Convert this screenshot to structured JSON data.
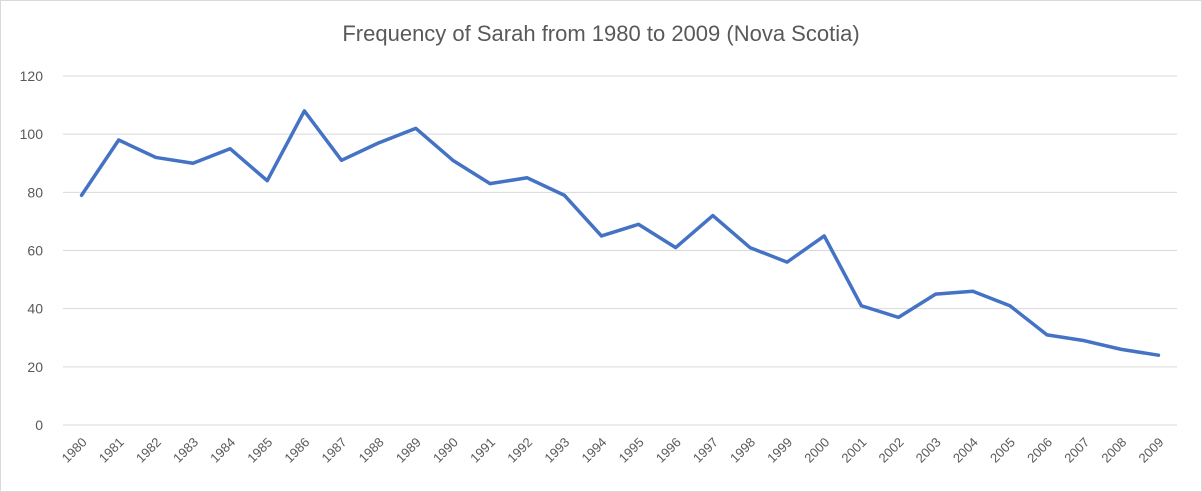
{
  "chart_data": {
    "type": "line",
    "title": "Frequency of Sarah from 1980 to 2009 (Nova Scotia)",
    "xlabel": "",
    "ylabel": "",
    "categories": [
      "1980",
      "1981",
      "1982",
      "1983",
      "1984",
      "1985",
      "1986",
      "1987",
      "1988",
      "1989",
      "1990",
      "1991",
      "1992",
      "1993",
      "1994",
      "1995",
      "1996",
      "1997",
      "1998",
      "1999",
      "2000",
      "2001",
      "2002",
      "2003",
      "2004",
      "2005",
      "2006",
      "2007",
      "2008",
      "2009"
    ],
    "series": [
      {
        "values": [
          79,
          98,
          92,
          90,
          95,
          84,
          108,
          91,
          97,
          102,
          91,
          83,
          85,
          79,
          65,
          69,
          61,
          72,
          61,
          56,
          65,
          41,
          37,
          45,
          46,
          41,
          31,
          29,
          26,
          24
        ]
      }
    ],
    "ylim": [
      0,
      120
    ],
    "yticks": [
      0,
      20,
      40,
      60,
      80,
      100,
      120
    ],
    "grid": true,
    "legend": "none",
    "colors": {
      "line": "#4472c4",
      "grid": "#d9d9d9",
      "text": "#595959"
    }
  }
}
